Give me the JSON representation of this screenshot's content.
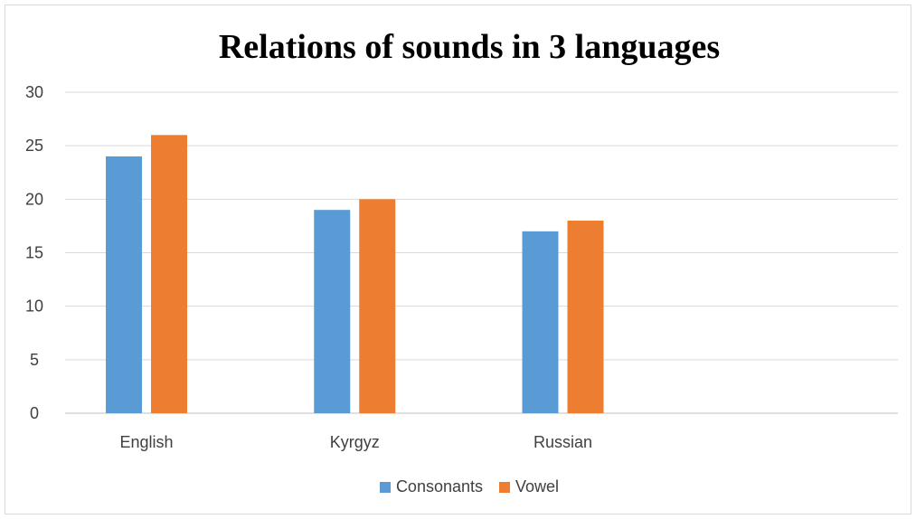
{
  "chart_data": {
    "type": "bar",
    "title": "Relations of sounds in 3 languages",
    "categories": [
      "English",
      "Kyrgyz",
      "Russian"
    ],
    "series": [
      {
        "name": "Consonants",
        "values": [
          24,
          19,
          17
        ],
        "color": "#5b9bd5"
      },
      {
        "name": "Vowel",
        "values": [
          26,
          20,
          18
        ],
        "color": "#ed7d31"
      }
    ],
    "yticks": [
      "0",
      "5",
      "10",
      "15",
      "20",
      "25",
      "30"
    ],
    "ylim": [
      0,
      30
    ],
    "grid": true,
    "legend_position": "bottom"
  }
}
